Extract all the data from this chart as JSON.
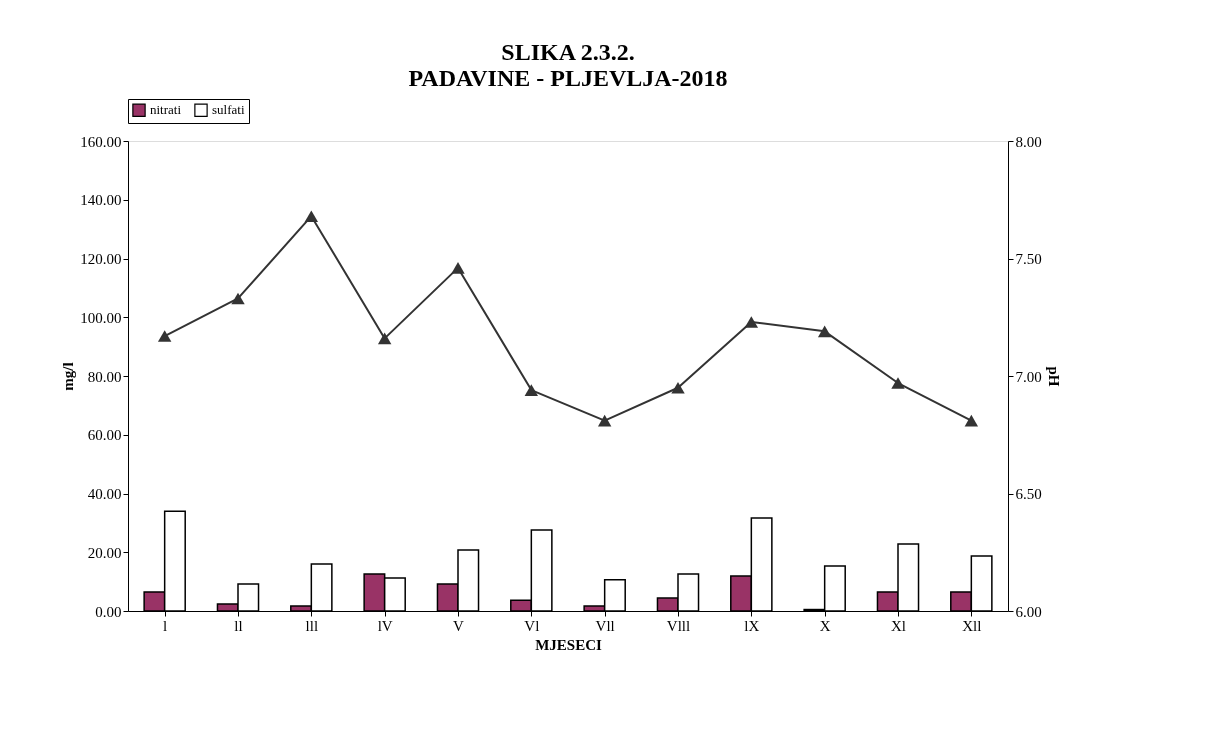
{
  "chart_data": {
    "type": "bar",
    "title": [
      "SLIKA 2.3.2.",
      "PADAVINE - PLJEVLJA-2018"
    ],
    "xlabel": "MJESECI",
    "ylabel": "mg/l",
    "y2label": "pH",
    "categories": [
      "l",
      "ll",
      "lll",
      "lV",
      "V",
      "Vl",
      "Vll",
      "Vlll",
      "lX",
      "X",
      "Xl",
      "Xll"
    ],
    "series": [
      {
        "name": "nitrati",
        "color": "#993366",
        "values": [
          6.5,
          2.4,
          1.7,
          12.6,
          9.2,
          3.7,
          1.7,
          4.4,
          11.9,
          0.5,
          6.5,
          6.5
        ]
      },
      {
        "name": "sulfati",
        "color": "#ffffff",
        "values": [
          34,
          9.2,
          16,
          11.2,
          20.8,
          27.6,
          10.6,
          12.6,
          31.7,
          15.3,
          22.8,
          18.7
        ]
      },
      {
        "type": "line",
        "axis": "y2",
        "color": "#333333",
        "marker": "triangle",
        "values": [
          7.17,
          7.33,
          7.68,
          7.16,
          7.46,
          6.94,
          6.81,
          6.95,
          7.23,
          7.19,
          6.97,
          6.81
        ]
      }
    ],
    "ylim": [
      0,
      160
    ],
    "yticks": [
      {
        "value": 0,
        "label": "0.00"
      },
      {
        "value": 20,
        "label": "20.00"
      },
      {
        "value": 40,
        "label": "40.00"
      },
      {
        "value": 60,
        "label": "60.00"
      },
      {
        "value": 80,
        "label": "80.00"
      },
      {
        "value": 100,
        "label": "100.00"
      },
      {
        "value": 120,
        "label": "120.00"
      },
      {
        "value": 140,
        "label": "140.00"
      },
      {
        "value": 160,
        "label": "160.00"
      }
    ],
    "y2lim": [
      6,
      8
    ],
    "y2ticks": [
      {
        "value": 6,
        "label": "6.00"
      },
      {
        "value": 6.5,
        "label": "6.50"
      },
      {
        "value": 7,
        "label": "7.00"
      },
      {
        "value": 7.5,
        "label": "7.50"
      },
      {
        "value": 8,
        "label": "8.00"
      }
    ],
    "grid": false,
    "legend": "top"
  }
}
